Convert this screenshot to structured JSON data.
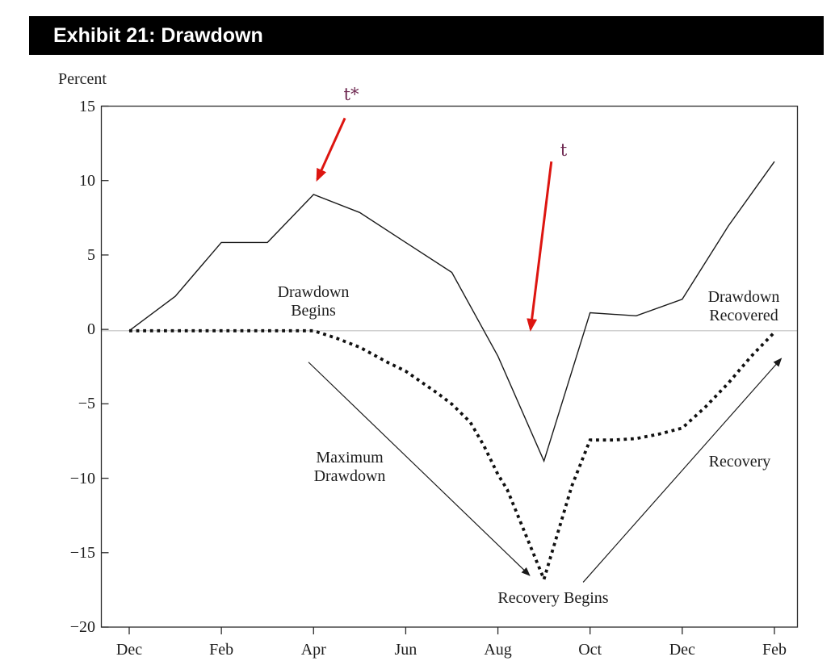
{
  "header": {
    "title": "Exhibit 21: Drawdown"
  },
  "chart_data": {
    "type": "line",
    "title": "Exhibit 21: Drawdown",
    "ylabel": "Percent",
    "ylim": [
      -20,
      15
    ],
    "yticks": [
      15,
      10,
      5,
      0,
      -5,
      -10,
      -15,
      -20
    ],
    "ytick_labels": [
      "15",
      "10",
      "5",
      "0",
      "−5",
      "−10",
      "−15",
      "−20"
    ],
    "xtick_labels": [
      "Dec",
      "Feb",
      "Apr",
      "Jun",
      "Aug",
      "Oct",
      "Dec",
      "Feb"
    ],
    "x_unit": "months (Dec through following Feb, 14 monthly steps; labels every 2 months)",
    "grid": "single light horizontal line at 0 only; full box border; inner y-ticks, outer x-ticks",
    "legend": "none",
    "series": [
      {
        "name": "portfolio-return-solid-line",
        "style": "solid",
        "x": [
          0,
          1,
          2,
          3,
          4,
          5,
          6,
          7,
          8,
          9,
          10,
          11,
          12,
          13,
          14
        ],
        "values": [
          0,
          2.3,
          5.9,
          5.9,
          9.1,
          7.9,
          5.9,
          3.9,
          -1.7,
          -8.7,
          1.2,
          1.0,
          2.1,
          7.0,
          11.3
        ]
      },
      {
        "name": "drawdown-dotted-line",
        "style": "dotted",
        "x": [
          0,
          1,
          2,
          3,
          4,
          4.5,
          5,
          5.6,
          6,
          6.7,
          7,
          7.4,
          7.7,
          8,
          8.2,
          9,
          9.6,
          10,
          10.5,
          11,
          11.5,
          12,
          12.5,
          13,
          13.5,
          14
        ],
        "values": [
          0,
          0,
          0,
          0,
          0,
          -0.5,
          -1.1,
          -2.1,
          -2.7,
          -4.2,
          -4.9,
          -6.1,
          -7.7,
          -9.6,
          -10.6,
          -16.6,
          -10.4,
          -7.3,
          -7.3,
          -7.2,
          -6.9,
          -6.5,
          -5.1,
          -3.5,
          -1.7,
          -0.1
        ]
      }
    ],
    "annotations": {
      "labels": {
        "t_star": "t*",
        "t": "t",
        "drawdown_begins_1": "Drawdown",
        "drawdown_begins_2": "Begins",
        "maximum_drawdown_1": "Maximum",
        "maximum_drawdown_2": "Drawdown",
        "recovery_begins": "Recovery Begins",
        "recovery": "Recovery",
        "drawdown_recovered_1": "Drawdown",
        "drawdown_recovered_2": "Recovered"
      },
      "arrows": [
        {
          "name": "t-star-arrow",
          "color": "red",
          "from": [
            4.68,
            14.2
          ],
          "to": [
            4.08,
            10.1
          ],
          "points_at": "peak of solid line at Apr (t*)"
        },
        {
          "name": "t-arrow",
          "color": "red",
          "from": [
            9.16,
            11.3
          ],
          "to": [
            8.71,
            0.1
          ],
          "points_at": "zero line between Aug and Sep (t)"
        },
        {
          "name": "maximum-drawdown-arrow",
          "color": "black",
          "from": [
            3.89,
            -2.1
          ],
          "to": [
            8.69,
            -16.35
          ],
          "points_at": "dotted-line trough (maximum drawdown)"
        },
        {
          "name": "recovery-arrow",
          "color": "black",
          "from": [
            9.85,
            -16.8
          ],
          "to": [
            14.15,
            -1.85
          ],
          "points_at": "rising recovery of dotted line"
        }
      ]
    }
  },
  "colors": {
    "titlebar_bg": "#000000",
    "titlebar_text": "#ffffff",
    "solid_line": "#1a1a1a",
    "dotted_line": "#101010",
    "zero_line": "#c2c2c2",
    "axis": "#2b2b2b",
    "red_arrow": "#dd1510",
    "time_label": "#6d2750",
    "annotation_text": "#1c1c1c"
  }
}
